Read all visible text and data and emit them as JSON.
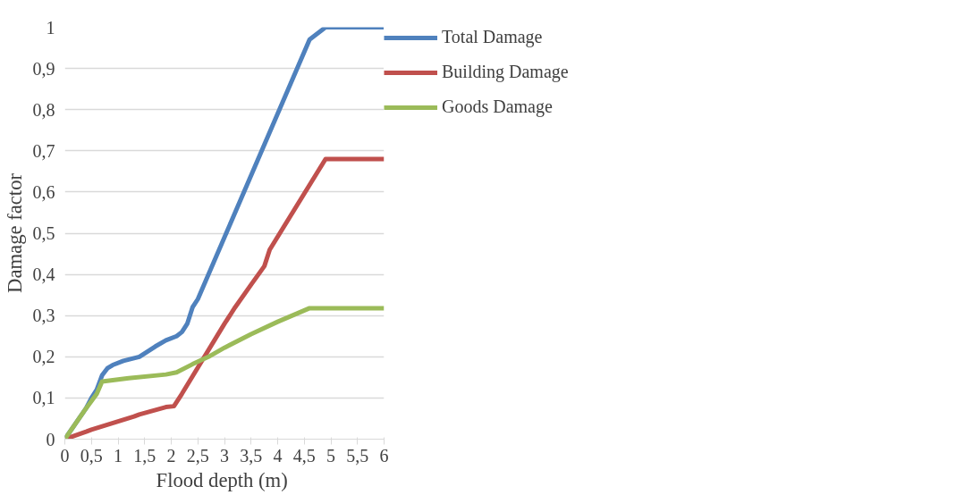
{
  "chart_data": {
    "type": "line",
    "xlabel": "Flood depth  (m)",
    "ylabel": "Damage factor",
    "xlim": [
      0,
      6
    ],
    "ylim": [
      0,
      1
    ],
    "xticks": [
      {
        "value": 0,
        "label": "0"
      },
      {
        "value": 0.5,
        "label": "0,5"
      },
      {
        "value": 1,
        "label": "1"
      },
      {
        "value": 1.5,
        "label": "1,5"
      },
      {
        "value": 2,
        "label": "2"
      },
      {
        "value": 2.5,
        "label": "2,5"
      },
      {
        "value": 3,
        "label": "3"
      },
      {
        "value": 3.5,
        "label": "3,5"
      },
      {
        "value": 4,
        "label": "4"
      },
      {
        "value": 4.5,
        "label": "4,5"
      },
      {
        "value": 5,
        "label": "5"
      },
      {
        "value": 5.5,
        "label": "5,5"
      },
      {
        "value": 6,
        "label": "6"
      }
    ],
    "yticks": [
      {
        "value": 0,
        "label": "0"
      },
      {
        "value": 0.1,
        "label": "0,1"
      },
      {
        "value": 0.2,
        "label": "0,2"
      },
      {
        "value": 0.3,
        "label": "0,3"
      },
      {
        "value": 0.4,
        "label": "0,4"
      },
      {
        "value": 0.5,
        "label": "0,5"
      },
      {
        "value": 0.6,
        "label": "0,6"
      },
      {
        "value": 0.7,
        "label": "0,7"
      },
      {
        "value": 0.8,
        "label": "0,8"
      },
      {
        "value": 0.9,
        "label": "0,9"
      },
      {
        "value": 1,
        "label": "1"
      }
    ],
    "grid": "y",
    "legend": "right",
    "line_style": "solid",
    "marker": "none",
    "series": [
      {
        "name": "Total Damage",
        "color": "#4f81bd",
        "x": [
          0,
          0.4,
          0.5,
          0.6,
          0.7,
          0.8,
          0.9,
          1.1,
          1.4,
          1.7,
          1.9,
          2.1,
          2.2,
          2.3,
          2.4,
          2.5,
          4.6,
          4.9,
          6
        ],
        "values": [
          0,
          0.075,
          0.1,
          0.12,
          0.155,
          0.172,
          0.18,
          0.19,
          0.2,
          0.225,
          0.24,
          0.25,
          0.26,
          0.28,
          0.32,
          0.34,
          0.97,
          1.0,
          1.0
        ]
      },
      {
        "name": "Building Damage",
        "color": "#c0504d",
        "x": [
          0,
          0.4,
          0.5,
          1.3,
          1.4,
          1.9,
          2.05,
          2.2,
          3.0,
          3.2,
          3.5,
          3.75,
          3.85,
          4.9,
          6
        ],
        "values": [
          0,
          0.018,
          0.023,
          0.055,
          0.06,
          0.078,
          0.08,
          0.11,
          0.28,
          0.32,
          0.375,
          0.42,
          0.46,
          0.68,
          0.68
        ]
      },
      {
        "name": "Goods Damage",
        "color": "#9bbb59",
        "x": [
          0,
          0.4,
          0.6,
          0.7,
          1.2,
          1.9,
          2.1,
          2.4,
          2.7,
          3.0,
          3.5,
          4.0,
          4.6,
          6
        ],
        "values": [
          0,
          0.075,
          0.11,
          0.14,
          0.148,
          0.157,
          0.162,
          0.182,
          0.2,
          0.222,
          0.255,
          0.285,
          0.318,
          0.318
        ]
      }
    ]
  }
}
